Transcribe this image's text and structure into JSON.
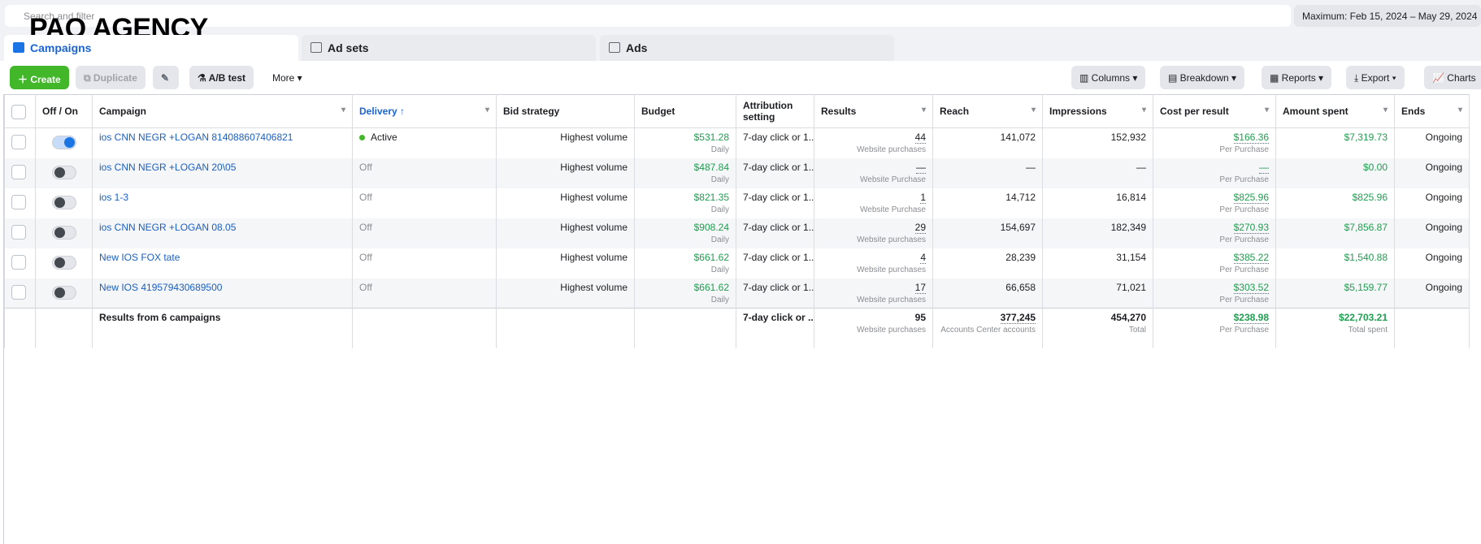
{
  "search": {
    "placeholder": "Search and filter"
  },
  "watermark": "PAQ AGENCY",
  "date_range": "Maximum: Feb 15, 2024 – May 29, 2024",
  "tabs": [
    "Campaigns",
    "Ad sets",
    "Ads"
  ],
  "toolbar": {
    "create": "Create",
    "duplicate": "Duplicate",
    "ab_test": "A/B test",
    "more": "More",
    "columns": "Columns",
    "breakdown": "Breakdown",
    "reports": "Reports",
    "export": "Export",
    "charts": "Charts"
  },
  "table": {
    "columns": [
      "Off / On",
      "Campaign",
      "Delivery",
      "Bid strategy",
      "Budget",
      "Attribution setting",
      "Results",
      "Reach",
      "Impressions",
      "Cost per result",
      "Amount spent",
      "Ends"
    ],
    "rows": [
      {
        "on": true,
        "campaign": "ios CNN NEGR +LOGAN 814088607406821",
        "delivery": "Active",
        "bid": "Highest volume",
        "budget": "$531.28",
        "budget_note": "Daily",
        "attribution": "7-day click or 1...",
        "results": "44",
        "results_note": "Website purchases",
        "reach": "141,072",
        "impressions": "152,932",
        "cpr": "$166.36",
        "cpr_note": "Per Purchase",
        "spent": "$7,319.73",
        "ends": "Ongoing"
      },
      {
        "on": false,
        "campaign": "ios CNN NEGR +LOGAN 20\\05",
        "delivery": "Off",
        "bid": "Highest volume",
        "budget": "$487.84",
        "budget_note": "Daily",
        "attribution": "7-day click or 1...",
        "results": "—",
        "results_note": "Website Purchase",
        "reach": "—",
        "impressions": "—",
        "cpr": "—",
        "cpr_note": "Per Purchase",
        "spent": "$0.00",
        "ends": "Ongoing"
      },
      {
        "on": false,
        "campaign": "ios 1-3",
        "delivery": "Off",
        "bid": "Highest volume",
        "budget": "$821.35",
        "budget_note": "Daily",
        "attribution": "7-day click or 1...",
        "results": "1",
        "results_note": "Website Purchase",
        "reach": "14,712",
        "impressions": "16,814",
        "cpr": "$825.96",
        "cpr_note": "Per Purchase",
        "spent": "$825.96",
        "ends": "Ongoing"
      },
      {
        "on": false,
        "campaign": "ios CNN NEGR +LOGAN 08.05",
        "delivery": "Off",
        "bid": "Highest volume",
        "budget": "$908.24",
        "budget_note": "Daily",
        "attribution": "7-day click or 1...",
        "results": "29",
        "results_note": "Website purchases",
        "reach": "154,697",
        "impressions": "182,349",
        "cpr": "$270.93",
        "cpr_note": "Per Purchase",
        "spent": "$7,856.87",
        "ends": "Ongoing"
      },
      {
        "on": false,
        "campaign": "New IOS FOX tate",
        "delivery": "Off",
        "bid": "Highest volume",
        "budget": "$661.62",
        "budget_note": "Daily",
        "attribution": "7-day click or 1...",
        "results": "4",
        "results_note": "Website purchases",
        "reach": "28,239",
        "impressions": "31,154",
        "cpr": "$385.22",
        "cpr_note": "Per Purchase",
        "spent": "$1,540.88",
        "ends": "Ongoing"
      },
      {
        "on": false,
        "campaign": "New IOS 419579430689500",
        "delivery": "Off",
        "bid": "Highest volume",
        "budget": "$661.62",
        "budget_note": "Daily",
        "attribution": "7-day click or 1...",
        "results": "17",
        "results_note": "Website purchases",
        "reach": "66,658",
        "impressions": "71,021",
        "cpr": "$303.52",
        "cpr_note": "Per Purchase",
        "spent": "$5,159.77",
        "ends": "Ongoing"
      }
    ],
    "footer": {
      "campaign": "Results from 6 campaigns",
      "attribution": "7-day click or ...",
      "results": "95",
      "results_note": "Website purchases",
      "reach": "377,245",
      "reach_note": "Accounts Center accounts",
      "impressions": "454,270",
      "impressions_note": "Total",
      "cpr": "$238.98",
      "cpr_note": "Per Purchase",
      "spent": "$22,703.21",
      "spent_note": "Total spent"
    }
  }
}
